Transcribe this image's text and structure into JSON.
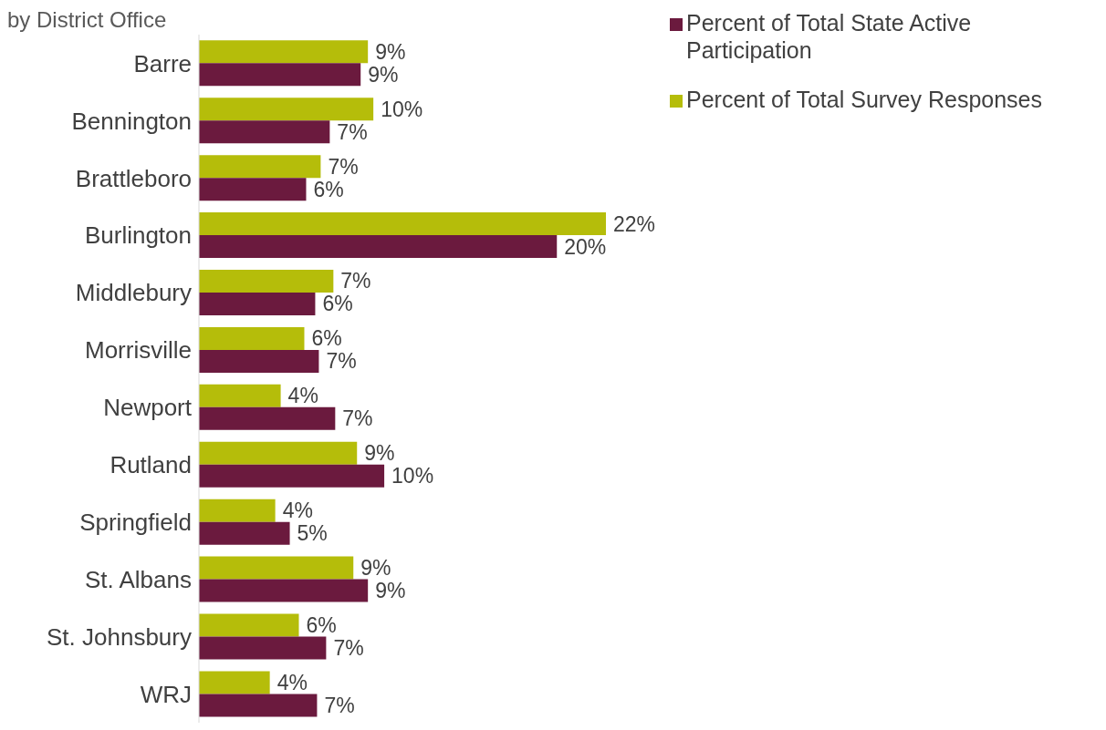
{
  "chart_data": {
    "type": "bar",
    "orientation": "horizontal",
    "title": "by District Office",
    "categories": [
      "Barre",
      "Bennington",
      "Brattleboro",
      "Burlington",
      "Middlebury",
      "Morrisville",
      "Newport",
      "Rutland",
      "Springfield",
      "St. Albans",
      "St. Johnsbury",
      "WRJ"
    ],
    "series": [
      {
        "name": "Percent of Total Survey Responses",
        "color": "#b5bd0a",
        "values": [
          9.3,
          9.6,
          6.7,
          22.4,
          7.4,
          5.8,
          4.5,
          8.7,
          4.2,
          8.5,
          5.5,
          3.9
        ],
        "value_labels": [
          "9%",
          "10%",
          "7%",
          "22%",
          "7%",
          "6%",
          "4%",
          "9%",
          "4%",
          "9%",
          "6%",
          "4%"
        ]
      },
      {
        "name": "Percent of Total State Active Participation",
        "color": "#6b1a3e",
        "values": [
          8.9,
          7.2,
          5.9,
          19.7,
          6.4,
          6.6,
          7.5,
          10.2,
          5.0,
          9.3,
          7.0,
          6.5
        ],
        "value_labels": [
          "9%",
          "7%",
          "6%",
          "20%",
          "6%",
          "7%",
          "7%",
          "10%",
          "5%",
          "9%",
          "7%",
          "7%"
        ]
      }
    ],
    "legend": "top right",
    "grid": false
  }
}
